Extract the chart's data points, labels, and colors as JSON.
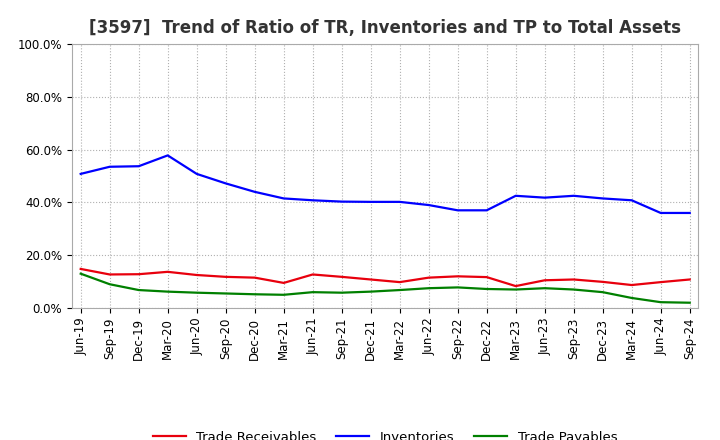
{
  "title": "[3597]  Trend of Ratio of TR, Inventories and TP to Total Assets",
  "labels": [
    "Jun-19",
    "Sep-19",
    "Dec-19",
    "Mar-20",
    "Jun-20",
    "Sep-20",
    "Dec-20",
    "Mar-21",
    "Jun-21",
    "Sep-21",
    "Dec-21",
    "Mar-22",
    "Jun-22",
    "Sep-22",
    "Dec-22",
    "Mar-23",
    "Jun-23",
    "Sep-23",
    "Dec-23",
    "Mar-24",
    "Jun-24",
    "Sep-24"
  ],
  "trade_receivables": [
    0.148,
    0.127,
    0.128,
    0.137,
    0.125,
    0.118,
    0.115,
    0.095,
    0.127,
    0.118,
    0.108,
    0.098,
    0.115,
    0.12,
    0.117,
    0.083,
    0.105,
    0.108,
    0.099,
    0.087,
    0.098,
    0.108
  ],
  "inventories": [
    0.508,
    0.535,
    0.537,
    0.578,
    0.508,
    0.472,
    0.44,
    0.415,
    0.408,
    0.403,
    0.402,
    0.402,
    0.39,
    0.37,
    0.37,
    0.425,
    0.418,
    0.425,
    0.415,
    0.408,
    0.36,
    0.36
  ],
  "trade_payables": [
    0.13,
    0.09,
    0.068,
    0.062,
    0.058,
    0.055,
    0.052,
    0.05,
    0.06,
    0.058,
    0.062,
    0.068,
    0.075,
    0.078,
    0.072,
    0.07,
    0.075,
    0.07,
    0.06,
    0.038,
    0.022,
    0.02
  ],
  "tr_color": "#e8000d",
  "inv_color": "#0000ff",
  "tp_color": "#008000",
  "ylim": [
    0.0,
    1.0
  ],
  "yticks": [
    0.0,
    0.2,
    0.4,
    0.6,
    0.8,
    1.0
  ],
  "legend_tr": "Trade Receivables",
  "legend_inv": "Inventories",
  "legend_tp": "Trade Payables",
  "bg_color": "#ffffff",
  "plot_bg_color": "#ffffff",
  "grid_color": "#b0b0b0",
  "line_width": 1.6,
  "title_fontsize": 12,
  "tick_fontsize": 8.5,
  "legend_fontsize": 9.5
}
